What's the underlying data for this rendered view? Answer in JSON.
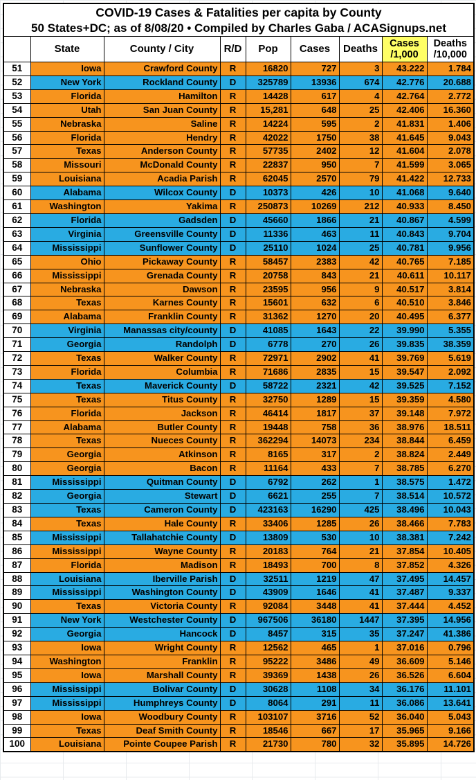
{
  "title": {
    "line1": "COVID-19 Cases & Fatalities per capita by County",
    "line2": "50 States+DC; as of 8/08/20  • Compiled by Charles Gaba / ACASignups.net"
  },
  "header": {
    "row_number": "",
    "state": "State",
    "county": "County / City",
    "rd": "R/D",
    "pop": "Pop",
    "cases": "Cases",
    "deaths": "Deaths",
    "cases_rate_line1": "Cases",
    "cases_rate_line2": "/1,000",
    "deaths_rate_line1": "Deaths",
    "deaths_rate_line2": "/10,000"
  },
  "colors": {
    "republican_row": "#f7941e",
    "democrat_row": "#29abe2",
    "cases_rate_header_bg": "#ffff66"
  },
  "rows": [
    {
      "num": "51",
      "state": "Iowa",
      "county": "Crawford County",
      "party": "R",
      "pop": "16820",
      "cases": "727",
      "deaths": "3",
      "per1k": "43.222",
      "per10k": "1.784"
    },
    {
      "num": "52",
      "state": "New York",
      "county": "Rockland County",
      "party": "D",
      "pop": "325789",
      "cases": "13936",
      "deaths": "674",
      "per1k": "42.776",
      "per10k": "20.688"
    },
    {
      "num": "53",
      "state": "Florida",
      "county": "Hamilton",
      "party": "R",
      "pop": "14428",
      "cases": "617",
      "deaths": "4",
      "per1k": "42.764",
      "per10k": "2.772"
    },
    {
      "num": "54",
      "state": "Utah",
      "county": "San Juan County",
      "party": "R",
      "pop": "15,281",
      "cases": "648",
      "deaths": "25",
      "per1k": "42.406",
      "per10k": "16.360"
    },
    {
      "num": "55",
      "state": "Nebraska",
      "county": "Saline",
      "party": "R",
      "pop": "14224",
      "cases": "595",
      "deaths": "2",
      "per1k": "41.831",
      "per10k": "1.406"
    },
    {
      "num": "56",
      "state": "Florida",
      "county": "Hendry",
      "party": "R",
      "pop": "42022",
      "cases": "1750",
      "deaths": "38",
      "per1k": "41.645",
      "per10k": "9.043"
    },
    {
      "num": "57",
      "state": "Texas",
      "county": "Anderson County",
      "party": "R",
      "pop": "57735",
      "cases": "2402",
      "deaths": "12",
      "per1k": "41.604",
      "per10k": "2.078"
    },
    {
      "num": "58",
      "state": "Missouri",
      "county": "McDonald County",
      "party": "R",
      "pop": "22837",
      "cases": "950",
      "deaths": "7",
      "per1k": "41.599",
      "per10k": "3.065"
    },
    {
      "num": "59",
      "state": "Louisiana",
      "county": "Acadia Parish",
      "party": "R",
      "pop": "62045",
      "cases": "2570",
      "deaths": "79",
      "per1k": "41.422",
      "per10k": "12.733"
    },
    {
      "num": "60",
      "state": "Alabama",
      "county": "Wilcox County",
      "party": "D",
      "pop": "10373",
      "cases": "426",
      "deaths": "10",
      "per1k": "41.068",
      "per10k": "9.640"
    },
    {
      "num": "61",
      "state": "Washington",
      "county": "Yakima",
      "party": "R",
      "pop": "250873",
      "cases": "10269",
      "deaths": "212",
      "per1k": "40.933",
      "per10k": "8.450"
    },
    {
      "num": "62",
      "state": "Florida",
      "county": "Gadsden",
      "party": "D",
      "pop": "45660",
      "cases": "1866",
      "deaths": "21",
      "per1k": "40.867",
      "per10k": "4.599"
    },
    {
      "num": "63",
      "state": "Virginia",
      "county": "Greensville County",
      "party": "D",
      "pop": "11336",
      "cases": "463",
      "deaths": "11",
      "per1k": "40.843",
      "per10k": "9.704"
    },
    {
      "num": "64",
      "state": "Mississippi",
      "county": "Sunflower County",
      "party": "D",
      "pop": "25110",
      "cases": "1024",
      "deaths": "25",
      "per1k": "40.781",
      "per10k": "9.956"
    },
    {
      "num": "65",
      "state": "Ohio",
      "county": "Pickaway County",
      "party": "R",
      "pop": "58457",
      "cases": "2383",
      "deaths": "42",
      "per1k": "40.765",
      "per10k": "7.185"
    },
    {
      "num": "66",
      "state": "Mississippi",
      "county": "Grenada County",
      "party": "R",
      "pop": "20758",
      "cases": "843",
      "deaths": "21",
      "per1k": "40.611",
      "per10k": "10.117"
    },
    {
      "num": "67",
      "state": "Nebraska",
      "county": "Dawson",
      "party": "R",
      "pop": "23595",
      "cases": "956",
      "deaths": "9",
      "per1k": "40.517",
      "per10k": "3.814"
    },
    {
      "num": "68",
      "state": "Texas",
      "county": "Karnes County",
      "party": "R",
      "pop": "15601",
      "cases": "632",
      "deaths": "6",
      "per1k": "40.510",
      "per10k": "3.846"
    },
    {
      "num": "69",
      "state": "Alabama",
      "county": "Franklin County",
      "party": "R",
      "pop": "31362",
      "cases": "1270",
      "deaths": "20",
      "per1k": "40.495",
      "per10k": "6.377"
    },
    {
      "num": "70",
      "state": "Virginia",
      "county": "Manassas city/county",
      "party": "D",
      "pop": "41085",
      "cases": "1643",
      "deaths": "22",
      "per1k": "39.990",
      "per10k": "5.355"
    },
    {
      "num": "71",
      "state": "Georgia",
      "county": "Randolph",
      "party": "D",
      "pop": "6778",
      "cases": "270",
      "deaths": "26",
      "per1k": "39.835",
      "per10k": "38.359"
    },
    {
      "num": "72",
      "state": "Texas",
      "county": "Walker County",
      "party": "R",
      "pop": "72971",
      "cases": "2902",
      "deaths": "41",
      "per1k": "39.769",
      "per10k": "5.619"
    },
    {
      "num": "73",
      "state": "Florida",
      "county": "Columbia",
      "party": "R",
      "pop": "71686",
      "cases": "2835",
      "deaths": "15",
      "per1k": "39.547",
      "per10k": "2.092"
    },
    {
      "num": "74",
      "state": "Texas",
      "county": "Maverick County",
      "party": "D",
      "pop": "58722",
      "cases": "2321",
      "deaths": "42",
      "per1k": "39.525",
      "per10k": "7.152"
    },
    {
      "num": "75",
      "state": "Texas",
      "county": "Titus County",
      "party": "R",
      "pop": "32750",
      "cases": "1289",
      "deaths": "15",
      "per1k": "39.359",
      "per10k": "4.580"
    },
    {
      "num": "76",
      "state": "Florida",
      "county": "Jackson",
      "party": "R",
      "pop": "46414",
      "cases": "1817",
      "deaths": "37",
      "per1k": "39.148",
      "per10k": "7.972"
    },
    {
      "num": "77",
      "state": "Alabama",
      "county": "Butler County",
      "party": "R",
      "pop": "19448",
      "cases": "758",
      "deaths": "36",
      "per1k": "38.976",
      "per10k": "18.511"
    },
    {
      "num": "78",
      "state": "Texas",
      "county": "Nueces County",
      "party": "R",
      "pop": "362294",
      "cases": "14073",
      "deaths": "234",
      "per1k": "38.844",
      "per10k": "6.459"
    },
    {
      "num": "79",
      "state": "Georgia",
      "county": "Atkinson",
      "party": "R",
      "pop": "8165",
      "cases": "317",
      "deaths": "2",
      "per1k": "38.824",
      "per10k": "2.449"
    },
    {
      "num": "80",
      "state": "Georgia",
      "county": "Bacon",
      "party": "R",
      "pop": "11164",
      "cases": "433",
      "deaths": "7",
      "per1k": "38.785",
      "per10k": "6.270"
    },
    {
      "num": "81",
      "state": "Mississippi",
      "county": "Quitman County",
      "party": "D",
      "pop": "6792",
      "cases": "262",
      "deaths": "1",
      "per1k": "38.575",
      "per10k": "1.472"
    },
    {
      "num": "82",
      "state": "Georgia",
      "county": "Stewart",
      "party": "D",
      "pop": "6621",
      "cases": "255",
      "deaths": "7",
      "per1k": "38.514",
      "per10k": "10.572"
    },
    {
      "num": "83",
      "state": "Texas",
      "county": "Cameron County",
      "party": "D",
      "pop": "423163",
      "cases": "16290",
      "deaths": "425",
      "per1k": "38.496",
      "per10k": "10.043"
    },
    {
      "num": "84",
      "state": "Texas",
      "county": "Hale County",
      "party": "R",
      "pop": "33406",
      "cases": "1285",
      "deaths": "26",
      "per1k": "38.466",
      "per10k": "7.783"
    },
    {
      "num": "85",
      "state": "Mississippi",
      "county": "Tallahatchie County",
      "party": "D",
      "pop": "13809",
      "cases": "530",
      "deaths": "10",
      "per1k": "38.381",
      "per10k": "7.242"
    },
    {
      "num": "86",
      "state": "Mississippi",
      "county": "Wayne County",
      "party": "R",
      "pop": "20183",
      "cases": "764",
      "deaths": "21",
      "per1k": "37.854",
      "per10k": "10.405"
    },
    {
      "num": "87",
      "state": "Florida",
      "county": "Madison",
      "party": "R",
      "pop": "18493",
      "cases": "700",
      "deaths": "8",
      "per1k": "37.852",
      "per10k": "4.326"
    },
    {
      "num": "88",
      "state": "Louisiana",
      "county": "Iberville Parish",
      "party": "D",
      "pop": "32511",
      "cases": "1219",
      "deaths": "47",
      "per1k": "37.495",
      "per10k": "14.457"
    },
    {
      "num": "89",
      "state": "Mississippi",
      "county": "Washington County",
      "party": "D",
      "pop": "43909",
      "cases": "1646",
      "deaths": "41",
      "per1k": "37.487",
      "per10k": "9.337"
    },
    {
      "num": "90",
      "state": "Texas",
      "county": "Victoria County",
      "party": "R",
      "pop": "92084",
      "cases": "3448",
      "deaths": "41",
      "per1k": "37.444",
      "per10k": "4.452"
    },
    {
      "num": "91",
      "state": "New York",
      "county": "Westchester County",
      "party": "D",
      "pop": "967506",
      "cases": "36180",
      "deaths": "1447",
      "per1k": "37.395",
      "per10k": "14.956"
    },
    {
      "num": "92",
      "state": "Georgia",
      "county": "Hancock",
      "party": "D",
      "pop": "8457",
      "cases": "315",
      "deaths": "35",
      "per1k": "37.247",
      "per10k": "41.386"
    },
    {
      "num": "93",
      "state": "Iowa",
      "county": "Wright County",
      "party": "R",
      "pop": "12562",
      "cases": "465",
      "deaths": "1",
      "per1k": "37.016",
      "per10k": "0.796"
    },
    {
      "num": "94",
      "state": "Washington",
      "county": "Franklin",
      "party": "R",
      "pop": "95222",
      "cases": "3486",
      "deaths": "49",
      "per1k": "36.609",
      "per10k": "5.146"
    },
    {
      "num": "95",
      "state": "Iowa",
      "county": "Marshall County",
      "party": "R",
      "pop": "39369",
      "cases": "1438",
      "deaths": "26",
      "per1k": "36.526",
      "per10k": "6.604"
    },
    {
      "num": "96",
      "state": "Mississippi",
      "county": "Bolivar County",
      "party": "D",
      "pop": "30628",
      "cases": "1108",
      "deaths": "34",
      "per1k": "36.176",
      "per10k": "11.101"
    },
    {
      "num": "97",
      "state": "Mississippi",
      "county": "Humphreys County",
      "party": "D",
      "pop": "8064",
      "cases": "291",
      "deaths": "11",
      "per1k": "36.086",
      "per10k": "13.641"
    },
    {
      "num": "98",
      "state": "Iowa",
      "county": "Woodbury County",
      "party": "R",
      "pop": "103107",
      "cases": "3716",
      "deaths": "52",
      "per1k": "36.040",
      "per10k": "5.043"
    },
    {
      "num": "99",
      "state": "Texas",
      "county": "Deaf Smith County",
      "party": "R",
      "pop": "18546",
      "cases": "667",
      "deaths": "17",
      "per1k": "35.965",
      "per10k": "9.166"
    },
    {
      "num": "100",
      "state": "Louisiana",
      "county": "Pointe Coupee Parish",
      "party": "R",
      "pop": "21730",
      "cases": "780",
      "deaths": "32",
      "per1k": "35.895",
      "per10k": "14.726"
    }
  ]
}
